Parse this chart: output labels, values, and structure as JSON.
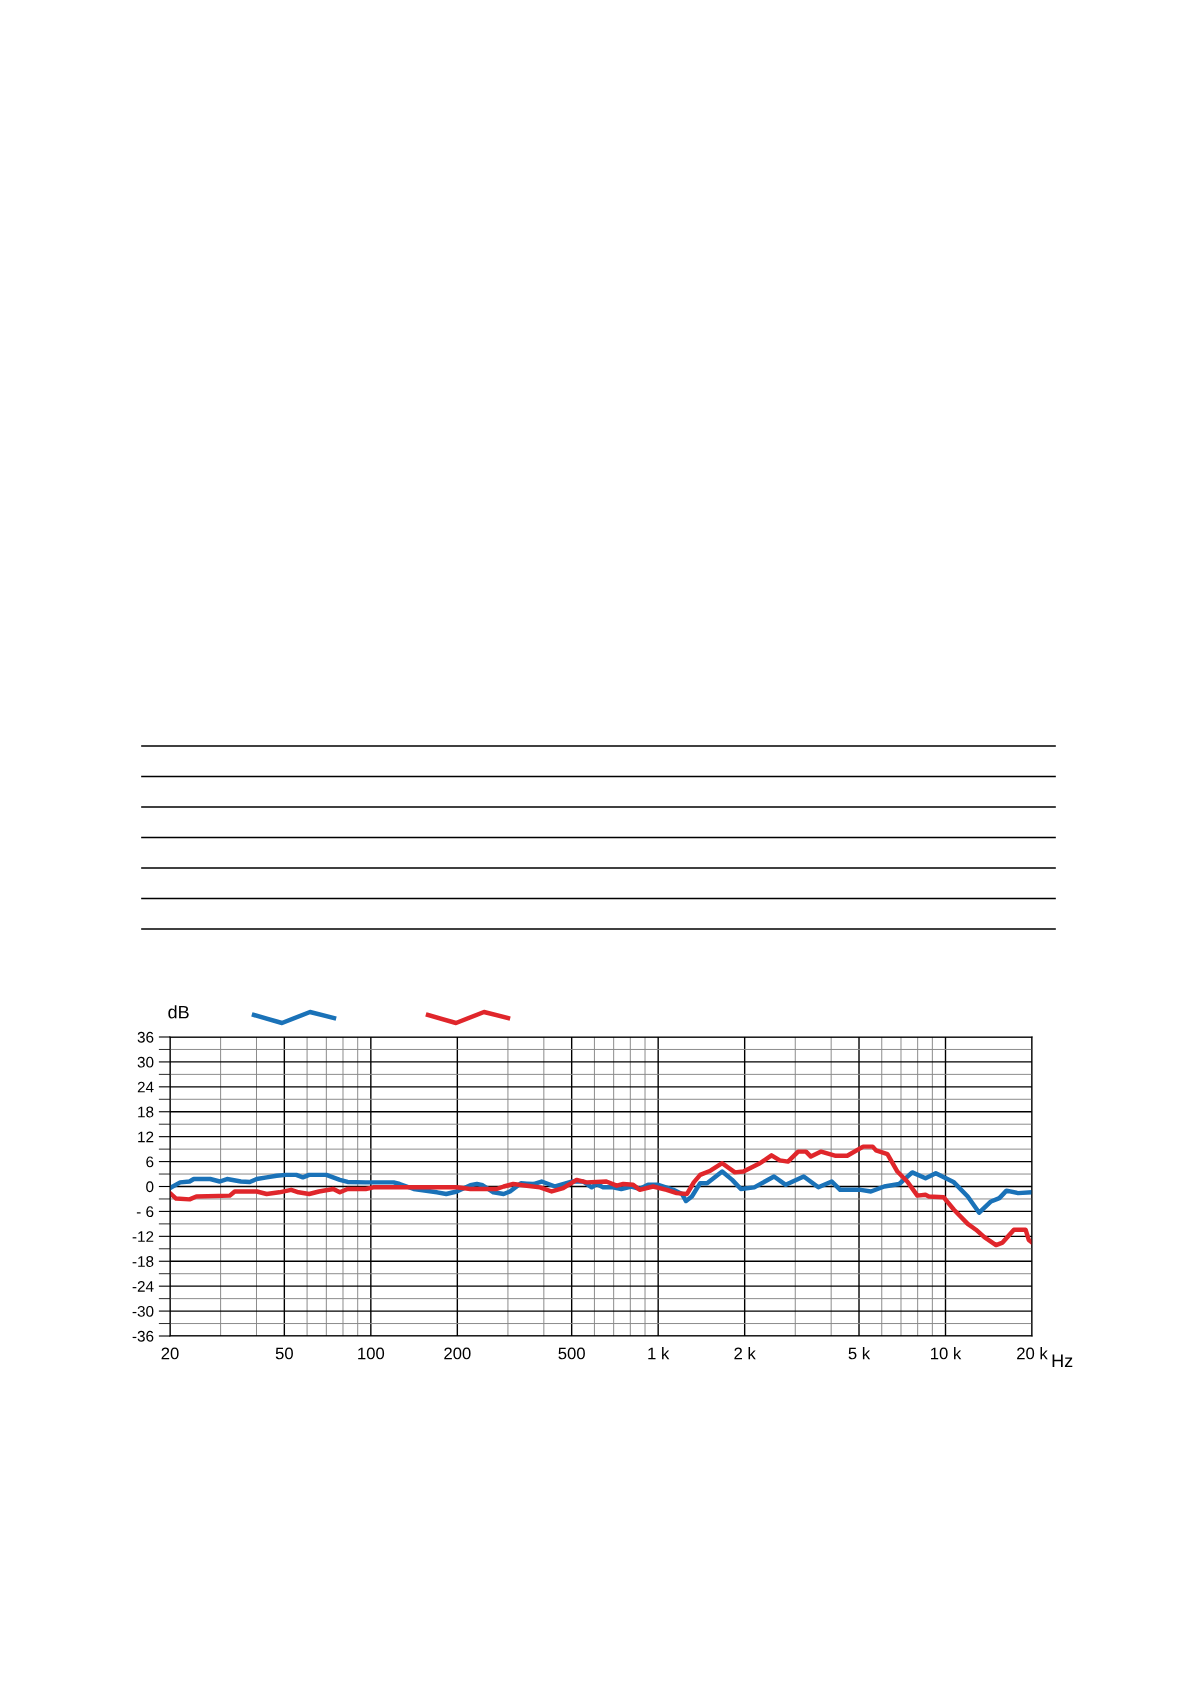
{
  "chart_data": {
    "type": "line",
    "xlabel": "Hz",
    "ylabel": "dB",
    "log": "x",
    "grid": true,
    "line_style": "solid",
    "marker": "none",
    "xlim": [
      20,
      20000
    ],
    "ylim": [
      -36,
      36
    ],
    "xticks": [
      20,
      50,
      100,
      200,
      500,
      {
        "value": 1000,
        "label": "1 k"
      },
      {
        "value": 2000,
        "label": "2 k"
      },
      {
        "value": 5000,
        "label": "5 k"
      },
      {
        "value": 10000,
        "label": "10 k"
      },
      {
        "value": 20000,
        "label": "20 k"
      }
    ],
    "yticks": [
      -36,
      -30,
      -24,
      -18,
      -12,
      {
        "value": -6,
        "label": "- 6"
      },
      0,
      6,
      12,
      18,
      24,
      30,
      36
    ],
    "series": [
      {
        "color": "#1a72b8",
        "x": [
          20,
          21.7,
          23.4,
          24.2,
          27.6,
          29.8,
          31.6,
          35.3,
          37.9,
          40.1,
          43.4,
          47,
          50.7,
          55,
          58,
          61,
          70,
          78,
          83,
          96,
          120,
          126,
          141,
          170,
          183,
          199,
          222,
          234,
          245,
          267,
          290,
          305,
          333,
          349,
          368,
          393,
          438,
          500,
          548,
          587,
          610,
          643,
          696,
          744,
          807,
          862,
          922,
          1000,
          1130,
          1210,
          1250,
          1310,
          1400,
          1480,
          1670,
          1810,
          1940,
          2160,
          2530,
          2780,
          3210,
          3610,
          4020,
          4300,
          5075,
          5500,
          6120,
          6900,
          7660,
          8520,
          9250,
          10700,
          11950,
          13100,
          14400,
          15400,
          16300,
          17900,
          20000
        ],
        "values": [
          -0.4,
          1.0,
          1.2,
          1.8,
          1.8,
          1.2,
          1.8,
          1.2,
          1.1,
          1.8,
          2.2,
          2.6,
          2.8,
          2.8,
          2.2,
          2.8,
          2.8,
          1.6,
          1.1,
          1.0,
          1.0,
          0.6,
          -0.6,
          -1.4,
          -1.8,
          -1.2,
          0.3,
          0.6,
          0.3,
          -1.4,
          -1.8,
          -1.2,
          0.8,
          0.7,
          0.6,
          1.2,
          0,
          1.2,
          1.2,
          -0.2,
          0.6,
          -0.2,
          -0.2,
          -0.6,
          0,
          -0.6,
          0.4,
          0.4,
          -0.8,
          -1.8,
          -3.5,
          -2.4,
          0.8,
          0.8,
          3.6,
          1.6,
          -0.6,
          -0.2,
          2.4,
          0.4,
          2.4,
          -0.2,
          1.2,
          -0.8,
          -0.8,
          -1.2,
          0,
          0.6,
          3.4,
          2.0,
          3.2,
          1.0,
          -2.4,
          -6.3,
          -3.6,
          -2.8,
          -1.0,
          -1.6,
          -1.4
        ]
      },
      {
        "color": "#e0262b",
        "x": [
          20,
          21,
          23.4,
          24.7,
          32.3,
          33.6,
          40.1,
          43.4,
          48,
          52.8,
          56,
          61,
          66,
          74,
          78,
          83,
          96,
          102,
          199,
          222,
          274,
          290,
          313,
          349,
          388,
          426,
          467,
          520,
          563,
          660,
          717,
          756,
          818,
          862,
          960,
          1070,
          1160,
          1260,
          1330,
          1400,
          1520,
          1670,
          1850,
          1980,
          2260,
          2480,
          2650,
          2830,
          3070,
          3270,
          3400,
          3690,
          4150,
          4550,
          5170,
          5580,
          5730,
          6280,
          6800,
          7360,
          7980,
          8520,
          8750,
          9860,
          10700,
          11950,
          12760,
          13650,
          14990,
          15800,
          17300,
          19000,
          19500,
          20000
        ],
        "values": [
          -1.6,
          -2.9,
          -3.1,
          -2.4,
          -2.2,
          -1.2,
          -1.2,
          -1.8,
          -1.4,
          -0.8,
          -1.4,
          -1.8,
          -1.2,
          -0.6,
          -1.4,
          -0.6,
          -0.6,
          -0.2,
          -0.2,
          -0.6,
          -0.6,
          0,
          0.6,
          0.2,
          -0.2,
          -1.2,
          -0.4,
          1.6,
          1.0,
          1.2,
          0.2,
          0.6,
          0.4,
          -0.8,
          0,
          -0.8,
          -1.6,
          -1.8,
          1.0,
          2.8,
          3.8,
          5.6,
          3.4,
          3.6,
          5.6,
          7.5,
          6.3,
          6.0,
          8.4,
          8.4,
          7.2,
          8.4,
          7.4,
          7.4,
          9.6,
          9.6,
          8.7,
          7.8,
          3.6,
          1.2,
          -2.2,
          -2.0,
          -2.4,
          -2.6,
          -5.6,
          -9.0,
          -10.4,
          -12.2,
          -14.1,
          -13.5,
          -10.4,
          -10.4,
          -12.9,
          -13.5
        ]
      }
    ]
  }
}
